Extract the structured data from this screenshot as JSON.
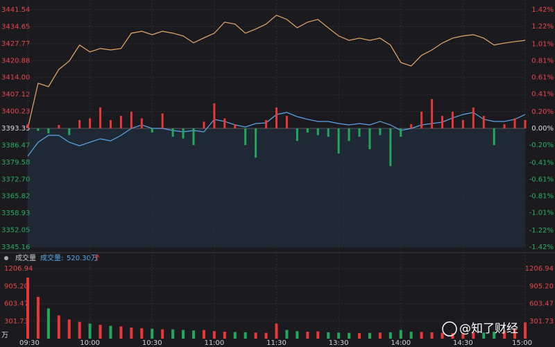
{
  "chart_data": [
    {
      "type": "line",
      "series": [
        {
          "color": "#e8a868",
          "values": [
            3393.35,
            3411.7,
            3410.3,
            3417.3,
            3420.7,
            3427.2,
            3424.4,
            3425.8,
            3425.2,
            3425.8,
            3432.0,
            3432.8,
            3431.4,
            3432.8,
            3432.0,
            3430.9,
            3428.1,
            3430.1,
            3432.0,
            3436.5,
            3435.7,
            3432.0,
            3433.7,
            3435.7,
            3439.3,
            3437.6,
            3434.2,
            3436.5,
            3437.6,
            3434.2,
            3430.9,
            3429.1,
            3430.0,
            3429.1,
            3430.0,
            3427.2,
            3420.1,
            3418.7,
            3423.0,
            3425.2,
            3428.0,
            3430.0,
            3430.9,
            3431.4,
            3430.0,
            3427.2,
            3428.0,
            3428.6,
            3429.1
          ]
        },
        {
          "color": "#5aa8e8",
          "values": [
            3382.08,
            3387.72,
            3390.53,
            3390.53,
            3387.72,
            3386.31,
            3387.72,
            3389.13,
            3388.28,
            3390.53,
            3393.35,
            3394.76,
            3393.35,
            3393.35,
            3392.51,
            3391.94,
            3392.51,
            3391.94,
            3397.02,
            3396.17,
            3394.76,
            3393.92,
            3395.32,
            3395.61,
            3398.99,
            3399.83,
            3398.14,
            3397.02,
            3396.17,
            3396.17,
            3395.32,
            3394.76,
            3395.32,
            3394.76,
            3396.17,
            3394.76,
            3392.51,
            3393.35,
            3394.76,
            3395.32,
            3395.89,
            3397.58,
            3398.99,
            3399.83,
            3397.02,
            3396.17,
            3396.17,
            3397.02,
            3398.99
          ]
        },
        {
          "type": "bar",
          "axis": "y2",
          "color": "#e83838",
          "negative_color": "#22a85a",
          "values": [
            0.05,
            -0.03,
            -0.06,
            0.04,
            -0.08,
            0.1,
            0.12,
            0.25,
            0.1,
            0.15,
            0.2,
            0.12,
            -0.05,
            0.18,
            -0.1,
            -0.12,
            -0.2,
            0.08,
            0.3,
            0.12,
            0.05,
            -0.2,
            -0.35,
            0.1,
            0.25,
            0.15,
            -0.15,
            -0.05,
            -0.08,
            -0.1,
            -0.3,
            -0.15,
            -0.1,
            -0.25,
            -0.08,
            -0.45,
            -0.1,
            0.05,
            0.2,
            0.35,
            0.15,
            0.2,
            0.1,
            0.25,
            0.15,
            -0.2,
            0.05,
            0.12,
            0.1
          ]
        }
      ],
      "ylim": [
        3345.16,
        3441.54
      ],
      "yticks": [
        3441.54,
        3434.65,
        3427.77,
        3420.88,
        {
          "value": 3414,
          "label": "3414.00"
        },
        3407.12,
        3400.23,
        3393.35,
        3386.47,
        3379.58,
        {
          "value": 3372.7,
          "label": "3372.70"
        },
        3365.82,
        3358.93,
        3352.05,
        3345.16
      ],
      "y2lim": [
        -1.42,
        1.42
      ],
      "y2ticks": [
        {
          "value": 1.42,
          "label": "1.42%"
        },
        {
          "value": 1.22,
          "label": "1.22%"
        },
        {
          "value": 1.01,
          "label": "1.01%"
        },
        {
          "value": 0.81,
          "label": "0.81%"
        },
        {
          "value": 0.61,
          "label": "0.61%"
        },
        {
          "value": 0.41,
          "label": "0.41%"
        },
        {
          "value": 0.2,
          "label": "0.20%"
        },
        {
          "value": 0,
          "label": "0.00%"
        },
        {
          "value": -0.2,
          "label": "-0.20%"
        },
        {
          "value": -0.41,
          "label": "-0.41%"
        },
        {
          "value": -0.61,
          "label": "-0.61%"
        },
        {
          "value": -0.81,
          "label": "-0.81%"
        },
        {
          "value": -1.01,
          "label": "-1.01%"
        },
        {
          "value": -1.22,
          "label": "-1.22%"
        },
        {
          "value": -1.42,
          "label": "-1.42%"
        }
      ],
      "up_color": "#e83838",
      "down_color": "#22a85a",
      "grid": true
    },
    {
      "type": "bar",
      "title": "成交量",
      "current_label": "成交量:",
      "current_value": "520.30万",
      "unit": "万",
      "categories": [
        "09:30",
        null,
        null,
        null,
        null,
        null,
        "10:00",
        null,
        null,
        null,
        null,
        null,
        "10:30",
        null,
        null,
        null,
        null,
        null,
        "11:00",
        null,
        null,
        null,
        null,
        null,
        "11:30",
        null,
        null,
        null,
        null,
        null,
        "13:30",
        null,
        null,
        null,
        null,
        null,
        "14:00",
        null,
        null,
        null,
        null,
        null,
        "14:30",
        null,
        null,
        null,
        null,
        null,
        "15:00"
      ],
      "values": [
        1050,
        720,
        520,
        400,
        330,
        290,
        260,
        240,
        220,
        210,
        190,
        180,
        170,
        160,
        160,
        150,
        140,
        150,
        130,
        120,
        115,
        110,
        105,
        100,
        260,
        150,
        130,
        120,
        125,
        110,
        105,
        100,
        95,
        100,
        105,
        110,
        150,
        120,
        115,
        110,
        100,
        95,
        100,
        110,
        105,
        120,
        140,
        160,
        280
      ],
      "color": "#e83838",
      "down_color": "#22a85a",
      "ylim": [
        0,
        1206.94
      ],
      "yticks": [
        1206.94,
        {
          "value": 905.2,
          "label": "905.20"
        },
        603.47,
        301.73
      ],
      "grid": true
    }
  ],
  "watermark": "@知了财经"
}
